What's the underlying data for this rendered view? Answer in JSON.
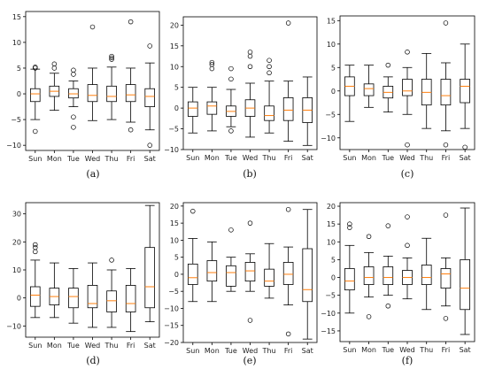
{
  "figure": {
    "panels_layout": "2 rows x 3 columns",
    "box_color": "#000000",
    "median_color": "#ff7f0e",
    "outlier_marker": "open-circle"
  },
  "chart_data": [
    {
      "type": "boxplot",
      "label": "(a)",
      "categories": [
        "Sun",
        "Mon",
        "Tue",
        "Wed",
        "Thu",
        "Fri",
        "Sat"
      ],
      "ylim": [
        -11,
        16
      ],
      "yticks": [
        -10,
        -5,
        0,
        5,
        10,
        15
      ],
      "grid": false,
      "boxes": [
        {
          "whislo": -5.0,
          "q1": -1.5,
          "med": 0.0,
          "q3": 1.0,
          "whishi": 4.8,
          "fliers": [
            -7.3,
            5.0,
            5.2
          ]
        },
        {
          "whislo": -3.2,
          "q1": -0.5,
          "med": 0.5,
          "q3": 1.5,
          "whishi": 4.0,
          "fliers": [
            5.0,
            5.8
          ]
        },
        {
          "whislo": -2.5,
          "q1": -0.8,
          "med": 0.0,
          "q3": 1.0,
          "whishi": 2.5,
          "fliers": [
            -4.5,
            -6.5,
            3.8,
            4.6
          ]
        },
        {
          "whislo": -5.2,
          "q1": -1.5,
          "med": -0.3,
          "q3": 1.8,
          "whishi": 5.0,
          "fliers": [
            13.0
          ]
        },
        {
          "whislo": -5.0,
          "q1": -1.5,
          "med": -0.5,
          "q3": 1.5,
          "whishi": 5.2,
          "fliers": [
            6.7,
            7.0,
            7.3
          ]
        },
        {
          "whislo": -5.5,
          "q1": -1.5,
          "med": -0.2,
          "q3": 1.8,
          "whishi": 5.0,
          "fliers": [
            -7.0,
            14.0
          ]
        },
        {
          "whislo": -7.0,
          "q1": -2.5,
          "med": -0.5,
          "q3": 1.0,
          "whishi": 6.0,
          "fliers": [
            -10.0,
            9.3
          ]
        }
      ]
    },
    {
      "type": "boxplot",
      "label": "(b)",
      "categories": [
        "Sun",
        "Mon",
        "Tue",
        "Wed",
        "Thu",
        "Fri",
        "Sat"
      ],
      "ylim": [
        -10,
        22
      ],
      "yticks": [
        -10,
        -5,
        0,
        5,
        10,
        15,
        20
      ],
      "grid": false,
      "boxes": [
        {
          "whislo": -6.0,
          "q1": -2.0,
          "med": 0.0,
          "q3": 1.5,
          "whishi": 5.0,
          "fliers": []
        },
        {
          "whislo": -5.5,
          "q1": -1.5,
          "med": 0.5,
          "q3": 1.5,
          "whishi": 5.0,
          "fliers": [
            9.5,
            10.5,
            11.0
          ]
        },
        {
          "whislo": -4.5,
          "q1": -2.0,
          "med": -0.8,
          "q3": 0.5,
          "whishi": 4.5,
          "fliers": [
            -5.5,
            7.0,
            9.5
          ]
        },
        {
          "whislo": -7.0,
          "q1": -2.0,
          "med": 0.0,
          "q3": 2.0,
          "whishi": 6.0,
          "fliers": [
            10.0,
            12.5,
            13.5
          ]
        },
        {
          "whislo": -6.0,
          "q1": -3.0,
          "med": -1.8,
          "q3": 0.5,
          "whishi": 6.5,
          "fliers": [
            8.5,
            10.0,
            11.5
          ]
        },
        {
          "whislo": -8.0,
          "q1": -3.0,
          "med": -0.5,
          "q3": 2.5,
          "whishi": 6.5,
          "fliers": [
            20.5
          ]
        },
        {
          "whislo": -9.0,
          "q1": -3.5,
          "med": -0.5,
          "q3": 2.5,
          "whishi": 7.5,
          "fliers": []
        }
      ]
    },
    {
      "type": "boxplot",
      "label": "(c)",
      "categories": [
        "Sun",
        "Mon",
        "Tue",
        "Wed",
        "Thu",
        "Fri",
        "Sat"
      ],
      "ylim": [
        -12.5,
        16
      ],
      "yticks": [
        -10,
        -5,
        0,
        5,
        10,
        15
      ],
      "grid": false,
      "boxes": [
        {
          "whislo": -6.5,
          "q1": -1.0,
          "med": 1.0,
          "q3": 3.0,
          "whishi": 5.5,
          "fliers": []
        },
        {
          "whislo": -3.5,
          "q1": -1.0,
          "med": 0.5,
          "q3": 1.5,
          "whishi": 5.5,
          "fliers": []
        },
        {
          "whislo": -4.5,
          "q1": -1.5,
          "med": -0.3,
          "q3": 1.0,
          "whishi": 3.0,
          "fliers": [
            5.5
          ]
        },
        {
          "whislo": -5.0,
          "q1": -1.0,
          "med": 0.0,
          "q3": 2.5,
          "whishi": 5.0,
          "fliers": [
            -11.5,
            8.3
          ]
        },
        {
          "whislo": -8.0,
          "q1": -3.0,
          "med": -0.3,
          "q3": 2.5,
          "whishi": 8.0,
          "fliers": []
        },
        {
          "whislo": -8.5,
          "q1": -3.0,
          "med": -1.0,
          "q3": 2.5,
          "whishi": 6.0,
          "fliers": [
            -11.5,
            14.5
          ]
        },
        {
          "whislo": -8.0,
          "q1": -2.5,
          "med": 1.0,
          "q3": 2.5,
          "whishi": 10.0,
          "fliers": [
            -12.0
          ]
        }
      ]
    },
    {
      "type": "boxplot",
      "label": "(d)",
      "categories": [
        "Sun",
        "Mon",
        "Tue",
        "Wed",
        "Thu",
        "Fri",
        "Sat"
      ],
      "ylim": [
        -14,
        34
      ],
      "yticks": [
        -10,
        0,
        10,
        20,
        30
      ],
      "grid": false,
      "boxes": [
        {
          "whislo": -7.0,
          "q1": -3.0,
          "med": 1.0,
          "q3": 4.0,
          "whishi": 13.5,
          "fliers": [
            16.5,
            18.0,
            19.0
          ]
        },
        {
          "whislo": -7.0,
          "q1": -2.5,
          "med": 0.5,
          "q3": 3.5,
          "whishi": 12.5,
          "fliers": []
        },
        {
          "whislo": -9.0,
          "q1": -3.5,
          "med": 0.5,
          "q3": 3.5,
          "whishi": 10.5,
          "fliers": []
        },
        {
          "whislo": -10.5,
          "q1": -3.5,
          "med": -2.0,
          "q3": 4.5,
          "whishi": 12.5,
          "fliers": []
        },
        {
          "whislo": -10.5,
          "q1": -5.0,
          "med": -1.0,
          "q3": 2.5,
          "whishi": 10.0,
          "fliers": [
            13.5
          ]
        },
        {
          "whislo": -12.0,
          "q1": -5.0,
          "med": -2.0,
          "q3": 4.5,
          "whishi": 10.5,
          "fliers": []
        },
        {
          "whislo": -8.5,
          "q1": -3.5,
          "med": 4.0,
          "q3": 18.0,
          "whishi": 33.0,
          "fliers": []
        }
      ]
    },
    {
      "type": "boxplot",
      "label": "(e)",
      "categories": [
        "Sun",
        "Mon",
        "Tue",
        "Wed",
        "Thu",
        "Fri",
        "Sat"
      ],
      "ylim": [
        -20,
        21
      ],
      "yticks": [
        -20,
        -15,
        -10,
        -5,
        0,
        5,
        10,
        15,
        20
      ],
      "grid": false,
      "boxes": [
        {
          "whislo": -8.0,
          "q1": -3.0,
          "med": -1.0,
          "q3": 3.0,
          "whishi": 10.5,
          "fliers": [
            18.5
          ]
        },
        {
          "whislo": -8.0,
          "q1": -2.0,
          "med": 0.5,
          "q3": 4.0,
          "whishi": 9.5,
          "fliers": []
        },
        {
          "whislo": -5.0,
          "q1": -3.5,
          "med": 0.5,
          "q3": 2.5,
          "whishi": 5.0,
          "fliers": [
            13.0
          ]
        },
        {
          "whislo": -5.0,
          "q1": -2.0,
          "med": 1.0,
          "q3": 3.5,
          "whishi": 6.0,
          "fliers": [
            -13.5,
            15.0
          ]
        },
        {
          "whislo": -7.0,
          "q1": -3.5,
          "med": -2.0,
          "q3": 1.5,
          "whishi": 9.0,
          "fliers": []
        },
        {
          "whislo": -9.0,
          "q1": -3.0,
          "med": 0.0,
          "q3": 3.5,
          "whishi": 8.0,
          "fliers": [
            -17.5,
            19.0
          ]
        },
        {
          "whislo": -19.0,
          "q1": -8.0,
          "med": -4.5,
          "q3": 7.5,
          "whishi": 19.0,
          "fliers": []
        }
      ]
    },
    {
      "type": "boxplot",
      "label": "(f)",
      "categories": [
        "Sun",
        "Mon",
        "Tue",
        "Wed",
        "Thu",
        "Fri",
        "Sat"
      ],
      "ylim": [
        -18,
        21
      ],
      "yticks": [
        -15,
        -10,
        -5,
        0,
        5,
        10,
        15,
        20
      ],
      "grid": false,
      "boxes": [
        {
          "whislo": -10.0,
          "q1": -3.5,
          "med": -1.0,
          "q3": 2.5,
          "whishi": 9.0,
          "fliers": [
            14.0,
            15.0
          ]
        },
        {
          "whislo": -5.5,
          "q1": -2.0,
          "med": 0.0,
          "q3": 3.0,
          "whishi": 7.0,
          "fliers": [
            -11.0,
            11.5
          ]
        },
        {
          "whislo": -5.0,
          "q1": -2.0,
          "med": 0.0,
          "q3": 3.0,
          "whishi": 6.0,
          "fliers": [
            -8.0,
            14.5
          ]
        },
        {
          "whislo": -6.0,
          "q1": -2.0,
          "med": 0.0,
          "q3": 2.0,
          "whishi": 5.5,
          "fliers": [
            9.0,
            17.0
          ]
        },
        {
          "whislo": -9.0,
          "q1": -2.0,
          "med": 0.0,
          "q3": 3.5,
          "whishi": 11.0,
          "fliers": []
        },
        {
          "whislo": -8.0,
          "q1": -3.0,
          "med": 1.0,
          "q3": 2.5,
          "whishi": 5.5,
          "fliers": [
            -11.5,
            17.5
          ]
        },
        {
          "whislo": -16.0,
          "q1": -9.0,
          "med": -3.0,
          "q3": 5.0,
          "whishi": 19.5,
          "fliers": []
        }
      ]
    }
  ]
}
